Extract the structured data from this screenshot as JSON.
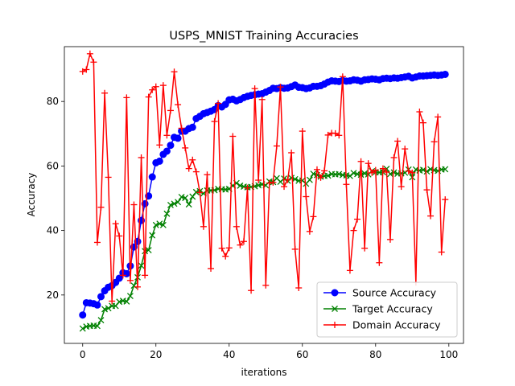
{
  "chart_data": {
    "type": "line",
    "title": "USPS_MNIST Training Accuracies",
    "xlabel": "iterations",
    "ylabel": "Accuracy",
    "xlim": [
      -5,
      104
    ],
    "ylim": [
      5,
      97
    ],
    "xticks": [
      0,
      20,
      40,
      60,
      80,
      100
    ],
    "yticks": [
      20,
      40,
      60,
      80
    ],
    "grid": false,
    "legend": "lower-right",
    "series": [
      {
        "name": "Source Accuracy",
        "color": "#0000ff",
        "marker": "circle",
        "values": [
          13.8,
          17.6,
          17.5,
          17.3,
          16.9,
          19.5,
          21.3,
          22.4,
          22.9,
          23.9,
          25.2,
          26.9,
          26.6,
          29.0,
          34.9,
          36.6,
          43.1,
          48.3,
          50.7,
          56.6,
          61.0,
          61.5,
          63.6,
          64.6,
          66.4,
          68.9,
          68.6,
          70.8,
          70.8,
          71.6,
          72.0,
          74.7,
          75.4,
          76.2,
          76.6,
          77.0,
          77.5,
          78.7,
          78.3,
          79.1,
          80.5,
          80.7,
          80.2,
          80.6,
          81.2,
          81.6,
          81.9,
          82.1,
          82.3,
          82.4,
          82.9,
          83.4,
          84.1,
          84.0,
          84.3,
          84.1,
          84.2,
          84.6,
          85.1,
          84.4,
          84.3,
          84.0,
          84.2,
          84.7,
          84.7,
          84.9,
          85.4,
          86.0,
          86.4,
          86.3,
          86.2,
          86.5,
          86.3,
          86.4,
          86.7,
          86.6,
          86.3,
          86.7,
          86.8,
          87.0,
          86.9,
          86.7,
          87.1,
          87.2,
          87.1,
          87.3,
          87.2,
          87.4,
          87.6,
          87.8,
          87.3,
          87.6,
          87.9,
          87.9,
          88.0,
          88.1,
          88.2,
          88.1,
          88.2,
          88.4
        ]
      },
      {
        "name": "Target Accuracy",
        "color": "#008000",
        "marker": "x",
        "values": [
          9.6,
          10.2,
          10.4,
          10.5,
          10.4,
          12.2,
          15.6,
          15.9,
          16.6,
          16.6,
          17.9,
          18.2,
          18.0,
          19.7,
          22.9,
          25.5,
          29.1,
          33.6,
          33.9,
          38.5,
          41.7,
          42.1,
          41.7,
          45.2,
          47.9,
          48.3,
          48.8,
          50.4,
          50.1,
          48.1,
          50.5,
          51.9,
          52.2,
          51.5,
          52.4,
          52.4,
          52.5,
          52.9,
          52.8,
          52.7,
          52.9,
          53.9,
          54.7,
          53.9,
          53.6,
          53.4,
          53.5,
          53.7,
          54.0,
          54.3,
          54.0,
          55.2,
          55.0,
          56.2,
          55.1,
          56.1,
          55.4,
          56.3,
          55.9,
          55.4,
          55.5,
          54.5,
          55.7,
          57.6,
          57.2,
          56.7,
          56.9,
          57.0,
          57.5,
          57.4,
          57.5,
          57.2,
          57.1,
          56.9,
          57.8,
          57.5,
          57.3,
          57.7,
          57.4,
          58.4,
          58.1,
          58.0,
          58.1,
          59.1,
          57.5,
          58.0,
          57.6,
          57.7,
          57.9,
          58.9,
          56.5,
          58.9,
          58.6,
          58.8,
          58.3,
          59.0,
          58.7,
          58.5,
          58.9,
          59.0
        ]
      },
      {
        "name": "Domain Accuracy",
        "color": "#ff0000",
        "marker": "plus",
        "values": [
          89.3,
          89.9,
          94.8,
          92.2,
          36.3,
          47.2,
          82.6,
          56.5,
          18.1,
          42.1,
          38.3,
          26.1,
          81.2,
          24.5,
          48.0,
          22.5,
          62.6,
          26.1,
          81.4,
          83.6,
          84.6,
          66.5,
          85.0,
          69.5,
          77.2,
          89.2,
          79.0,
          71.7,
          65.6,
          59.2,
          61.9,
          58.2,
          51.8,
          41.2,
          57.3,
          28.2,
          73.8,
          79.4,
          34.5,
          32.0,
          34.6,
          69.2,
          41.2,
          35.5,
          36.6,
          53.2,
          21.4,
          84.0,
          55.6,
          80.6,
          23.0,
          54.7,
          54.9,
          66.2,
          84.5,
          53.6,
          55.7,
          64.1,
          34.2,
          22.2,
          70.8,
          50.5,
          39.7,
          44.3,
          58.9,
          56.4,
          58.5,
          69.6,
          70.2,
          70.1,
          69.5,
          87.7,
          54.3,
          27.6,
          40.0,
          43.5,
          61.4,
          34.5,
          60.8,
          57.9,
          58.7,
          30.0,
          59.2,
          58.1,
          37.2,
          62.6,
          67.7,
          53.6,
          65.3,
          58.4,
          57.9,
          23.9,
          76.8,
          73.4,
          52.6,
          44.5,
          67.5,
          75.2,
          33.3,
          49.6
        ]
      }
    ]
  }
}
